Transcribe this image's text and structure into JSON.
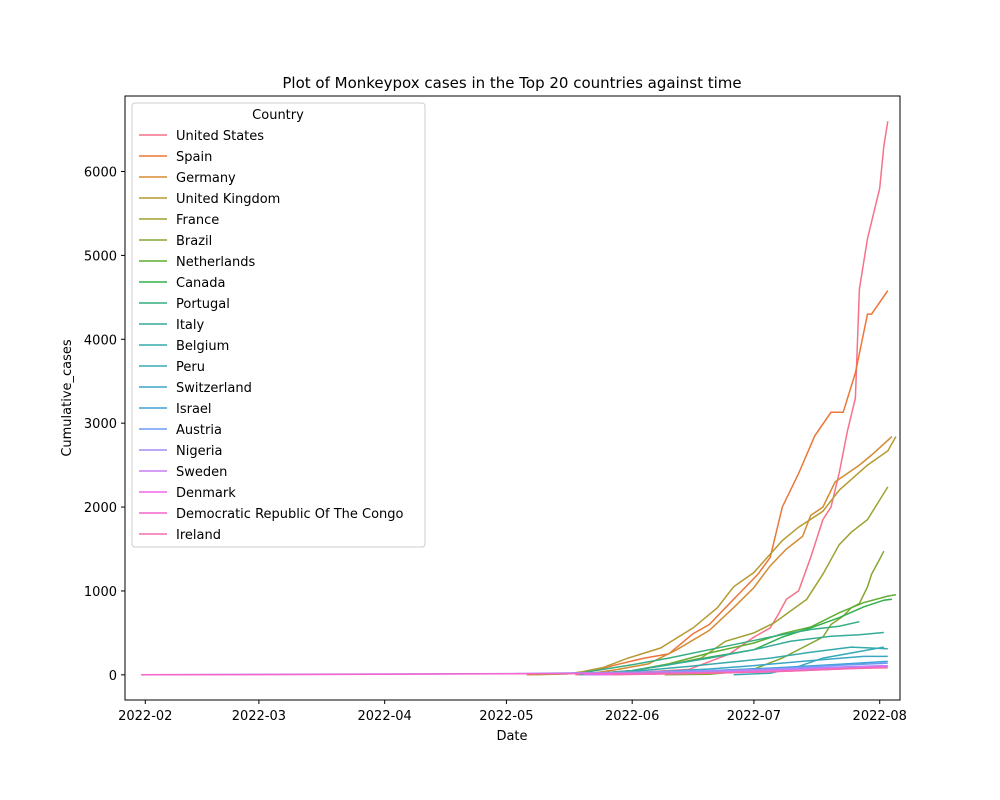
{
  "chart_data": {
    "type": "line",
    "title": "Plot of Monkeypox cases in the Top 20 countries against time",
    "xlabel": "Date",
    "ylabel": "Cumulative_cases",
    "xlim": [
      "2022-01-27",
      "2022-08-06"
    ],
    "ylim": [
      -300,
      6900
    ],
    "x_ticks": [
      "2022-02",
      "2022-03",
      "2022-04",
      "2022-05",
      "2022-06",
      "2022-07",
      "2022-08"
    ],
    "x_tick_dates": [
      "2022-02-01",
      "2022-03-01",
      "2022-04-01",
      "2022-05-01",
      "2022-06-01",
      "2022-07-01",
      "2022-08-01"
    ],
    "y_ticks": [
      0,
      1000,
      2000,
      3000,
      4000,
      5000,
      6000
    ],
    "grid": false,
    "legend": {
      "title": "Country",
      "position": "upper-left"
    },
    "series": [
      {
        "name": "United States",
        "color": "#f77189",
        "points": [
          [
            "2022-05-18",
            0
          ],
          [
            "2022-06-01",
            25
          ],
          [
            "2022-06-15",
            65
          ],
          [
            "2022-06-25",
            250
          ],
          [
            "2022-07-01",
            450
          ],
          [
            "2022-07-05",
            560
          ],
          [
            "2022-07-07",
            720
          ],
          [
            "2022-07-09",
            900
          ],
          [
            "2022-07-12",
            1000
          ],
          [
            "2022-07-15",
            1400
          ],
          [
            "2022-07-18",
            1850
          ],
          [
            "2022-07-20",
            2000
          ],
          [
            "2022-07-22",
            2400
          ],
          [
            "2022-07-24",
            2900
          ],
          [
            "2022-07-26",
            3300
          ],
          [
            "2022-07-27",
            4600
          ],
          [
            "2022-07-29",
            5200
          ],
          [
            "2022-08-01",
            5800
          ],
          [
            "2022-08-02",
            6300
          ],
          [
            "2022-08-03",
            6600
          ]
        ]
      },
      {
        "name": "Spain",
        "color": "#ec7638",
        "points": [
          [
            "2022-05-06",
            0
          ],
          [
            "2022-05-20",
            20
          ],
          [
            "2022-05-28",
            120
          ],
          [
            "2022-06-04",
            200
          ],
          [
            "2022-06-10",
            250
          ],
          [
            "2022-06-16",
            490
          ],
          [
            "2022-06-20",
            600
          ],
          [
            "2022-06-24",
            800
          ],
          [
            "2022-06-28",
            1000
          ],
          [
            "2022-07-02",
            1200
          ],
          [
            "2022-07-05",
            1400
          ],
          [
            "2022-07-08",
            2000
          ],
          [
            "2022-07-12",
            2400
          ],
          [
            "2022-07-16",
            2850
          ],
          [
            "2022-07-20",
            3130
          ],
          [
            "2022-07-23",
            3130
          ],
          [
            "2022-07-26",
            3600
          ],
          [
            "2022-07-29",
            4300
          ],
          [
            "2022-07-30",
            4300
          ],
          [
            "2022-08-03",
            4580
          ]
        ]
      },
      {
        "name": "Germany",
        "color": "#d58a32",
        "points": [
          [
            "2022-05-20",
            5
          ],
          [
            "2022-05-28",
            60
          ],
          [
            "2022-06-05",
            130
          ],
          [
            "2022-06-12",
            300
          ],
          [
            "2022-06-20",
            530
          ],
          [
            "2022-06-26",
            800
          ],
          [
            "2022-07-01",
            1040
          ],
          [
            "2022-07-05",
            1300
          ],
          [
            "2022-07-09",
            1500
          ],
          [
            "2022-07-13",
            1650
          ],
          [
            "2022-07-15",
            1900
          ],
          [
            "2022-07-18",
            2000
          ],
          [
            "2022-07-21",
            2300
          ],
          [
            "2022-07-24",
            2400
          ],
          [
            "2022-07-27",
            2500
          ],
          [
            "2022-07-30",
            2620
          ],
          [
            "2022-08-04",
            2840
          ]
        ]
      },
      {
        "name": "United Kingdom",
        "color": "#b69a31",
        "points": [
          [
            "2022-05-07",
            1
          ],
          [
            "2022-05-16",
            10
          ],
          [
            "2022-05-20",
            40
          ],
          [
            "2022-05-25",
            90
          ],
          [
            "2022-05-31",
            200
          ],
          [
            "2022-06-08",
            320
          ],
          [
            "2022-06-16",
            560
          ],
          [
            "2022-06-22",
            800
          ],
          [
            "2022-06-26",
            1050
          ],
          [
            "2022-07-01",
            1220
          ],
          [
            "2022-07-08",
            1600
          ],
          [
            "2022-07-12",
            1760
          ],
          [
            "2022-07-18",
            1950
          ],
          [
            "2022-07-22",
            2200
          ],
          [
            "2022-07-25",
            2330
          ],
          [
            "2022-07-29",
            2500
          ],
          [
            "2022-08-03",
            2670
          ],
          [
            "2022-08-05",
            2840
          ]
        ]
      },
      {
        "name": "France",
        "color": "#9ea22f",
        "points": [
          [
            "2022-05-20",
            5
          ],
          [
            "2022-06-01",
            50
          ],
          [
            "2022-06-10",
            120
          ],
          [
            "2022-06-18",
            200
          ],
          [
            "2022-06-24",
            400
          ],
          [
            "2022-07-01",
            500
          ],
          [
            "2022-07-06",
            620
          ],
          [
            "2022-07-10",
            760
          ],
          [
            "2022-07-14",
            900
          ],
          [
            "2022-07-18",
            1200
          ],
          [
            "2022-07-22",
            1550
          ],
          [
            "2022-07-25",
            1700
          ],
          [
            "2022-07-29",
            1850
          ],
          [
            "2022-08-03",
            2240
          ]
        ]
      },
      {
        "name": "Brazil",
        "color": "#85a52f",
        "points": [
          [
            "2022-06-09",
            1
          ],
          [
            "2022-06-20",
            8
          ],
          [
            "2022-06-30",
            50
          ],
          [
            "2022-07-08",
            200
          ],
          [
            "2022-07-14",
            350
          ],
          [
            "2022-07-18",
            450
          ],
          [
            "2022-07-20",
            600
          ],
          [
            "2022-07-23",
            700
          ],
          [
            "2022-07-25",
            800
          ],
          [
            "2022-07-27",
            850
          ],
          [
            "2022-07-29",
            1050
          ],
          [
            "2022-07-30",
            1200
          ],
          [
            "2022-08-01",
            1380
          ],
          [
            "2022-08-02",
            1474
          ]
        ]
      },
      {
        "name": "Netherlands",
        "color": "#5fad31",
        "points": [
          [
            "2022-05-20",
            1
          ],
          [
            "2022-06-01",
            50
          ],
          [
            "2022-06-10",
            130
          ],
          [
            "2022-06-20",
            260
          ],
          [
            "2022-07-01",
            380
          ],
          [
            "2022-07-08",
            490
          ],
          [
            "2022-07-15",
            570
          ],
          [
            "2022-07-22",
            740
          ],
          [
            "2022-07-28",
            860
          ],
          [
            "2022-08-03",
            938
          ],
          [
            "2022-08-05",
            955
          ]
        ]
      },
      {
        "name": "Canada",
        "color": "#32b04a",
        "points": [
          [
            "2022-05-20",
            5
          ],
          [
            "2022-06-01",
            50
          ],
          [
            "2022-06-10",
            120
          ],
          [
            "2022-06-20",
            210
          ],
          [
            "2022-07-01",
            300
          ],
          [
            "2022-07-08",
            450
          ],
          [
            "2022-07-15",
            560
          ],
          [
            "2022-07-22",
            681
          ],
          [
            "2022-07-28",
            810
          ],
          [
            "2022-08-02",
            890
          ],
          [
            "2022-08-04",
            902
          ]
        ]
      },
      {
        "name": "Portugal",
        "color": "#34ae7f",
        "points": [
          [
            "2022-05-18",
            14
          ],
          [
            "2022-06-01",
            120
          ],
          [
            "2022-06-10",
            200
          ],
          [
            "2022-06-20",
            300
          ],
          [
            "2022-06-30",
            400
          ],
          [
            "2022-07-08",
            480
          ],
          [
            "2022-07-15",
            540
          ],
          [
            "2022-07-22",
            580
          ],
          [
            "2022-07-27",
            633
          ]
        ]
      },
      {
        "name": "Italy",
        "color": "#36ac98",
        "points": [
          [
            "2022-05-19",
            1
          ],
          [
            "2022-06-01",
            50
          ],
          [
            "2022-06-10",
            120
          ],
          [
            "2022-06-20",
            200
          ],
          [
            "2022-07-01",
            300
          ],
          [
            "2022-07-10",
            400
          ],
          [
            "2022-07-20",
            460
          ],
          [
            "2022-07-27",
            479
          ],
          [
            "2022-08-02",
            505
          ]
        ]
      },
      {
        "name": "Belgium",
        "color": "#37aaab",
        "points": [
          [
            "2022-05-20",
            2
          ],
          [
            "2022-06-01",
            40
          ],
          [
            "2022-06-15",
            100
          ],
          [
            "2022-06-25",
            150
          ],
          [
            "2022-07-05",
            200
          ],
          [
            "2022-07-15",
            270
          ],
          [
            "2022-07-25",
            330
          ],
          [
            "2022-08-03",
            311
          ]
        ]
      },
      {
        "name": "Peru",
        "color": "#38a8b7",
        "points": [
          [
            "2022-06-26",
            1
          ],
          [
            "2022-07-05",
            20
          ],
          [
            "2022-07-12",
            100
          ],
          [
            "2022-07-18",
            200
          ],
          [
            "2022-07-25",
            260
          ],
          [
            "2022-08-02",
            330
          ]
        ]
      },
      {
        "name": "Switzerland",
        "color": "#3aa6c5",
        "points": [
          [
            "2022-05-22",
            1
          ],
          [
            "2022-06-05",
            30
          ],
          [
            "2022-06-20",
            70
          ],
          [
            "2022-07-01",
            110
          ],
          [
            "2022-07-15",
            170
          ],
          [
            "2022-07-28",
            220
          ],
          [
            "2022-08-03",
            220
          ]
        ]
      },
      {
        "name": "Israel",
        "color": "#3ea2d6",
        "points": [
          [
            "2022-05-21",
            1
          ],
          [
            "2022-06-05",
            20
          ],
          [
            "2022-06-20",
            50
          ],
          [
            "2022-07-05",
            80
          ],
          [
            "2022-07-20",
            120
          ],
          [
            "2022-08-03",
            160
          ]
        ]
      },
      {
        "name": "Austria",
        "color": "#6e9af4",
        "points": [
          [
            "2022-05-22",
            1
          ],
          [
            "2022-06-05",
            15
          ],
          [
            "2022-06-20",
            40
          ],
          [
            "2022-07-05",
            70
          ],
          [
            "2022-07-20",
            110
          ],
          [
            "2022-08-03",
            140
          ]
        ]
      },
      {
        "name": "Nigeria",
        "color": "#a48cf4",
        "points": [
          [
            "2022-01-31",
            0
          ],
          [
            "2022-03-01",
            5
          ],
          [
            "2022-04-01",
            10
          ],
          [
            "2022-05-01",
            15
          ],
          [
            "2022-06-01",
            30
          ],
          [
            "2022-07-01",
            60
          ],
          [
            "2022-08-02",
            110
          ]
        ]
      },
      {
        "name": "Sweden",
        "color": "#c87df4",
        "points": [
          [
            "2022-05-20",
            1
          ],
          [
            "2022-06-05",
            10
          ],
          [
            "2022-06-20",
            30
          ],
          [
            "2022-07-05",
            55
          ],
          [
            "2022-07-20",
            80
          ],
          [
            "2022-08-03",
            110
          ]
        ]
      },
      {
        "name": "Denmark",
        "color": "#f167e9",
        "points": [
          [
            "2022-05-23",
            1
          ],
          [
            "2022-06-05",
            10
          ],
          [
            "2022-06-20",
            25
          ],
          [
            "2022-07-05",
            40
          ],
          [
            "2022-07-20",
            70
          ],
          [
            "2022-08-03",
            95
          ]
        ]
      },
      {
        "name": "Democratic Republic Of The Congo",
        "color": "#f565cc",
        "points": [
          [
            "2022-01-31",
            0
          ],
          [
            "2022-03-01",
            3
          ],
          [
            "2022-04-01",
            6
          ],
          [
            "2022-05-01",
            12
          ],
          [
            "2022-06-01",
            16
          ],
          [
            "2022-07-01",
            30
          ],
          [
            "2022-08-01",
            88
          ]
        ]
      },
      {
        "name": "Ireland",
        "color": "#f66bad",
        "points": [
          [
            "2022-05-27",
            1
          ],
          [
            "2022-06-10",
            10
          ],
          [
            "2022-06-25",
            25
          ],
          [
            "2022-07-10",
            45
          ],
          [
            "2022-07-25",
            75
          ],
          [
            "2022-08-03",
            85
          ]
        ]
      }
    ]
  }
}
